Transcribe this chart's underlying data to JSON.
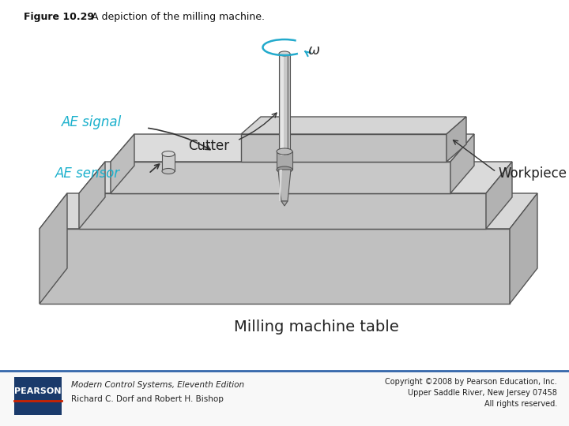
{
  "title_bold": "Figure 10.29",
  "title_normal": "  A depiction of the milling machine.",
  "bg_color": "#ffffff",
  "pearson_box_color": "#1a3a6b",
  "pearson_text": "PEARSON",
  "book_line1": "Modern Control Systems, Eleventh Edition",
  "book_line2": "Richard C. Dorf and Robert H. Bishop",
  "label_ae_signal": "AE signal",
  "label_ae_sensor": "AE sensor",
  "label_cutter": "Cutter",
  "label_workpiece": "Workpiece",
  "label_omega": "ω",
  "label_table": "Milling machine table",
  "label_color_cyan": "#1ab0cc",
  "footer_line_color": "#3366aa"
}
